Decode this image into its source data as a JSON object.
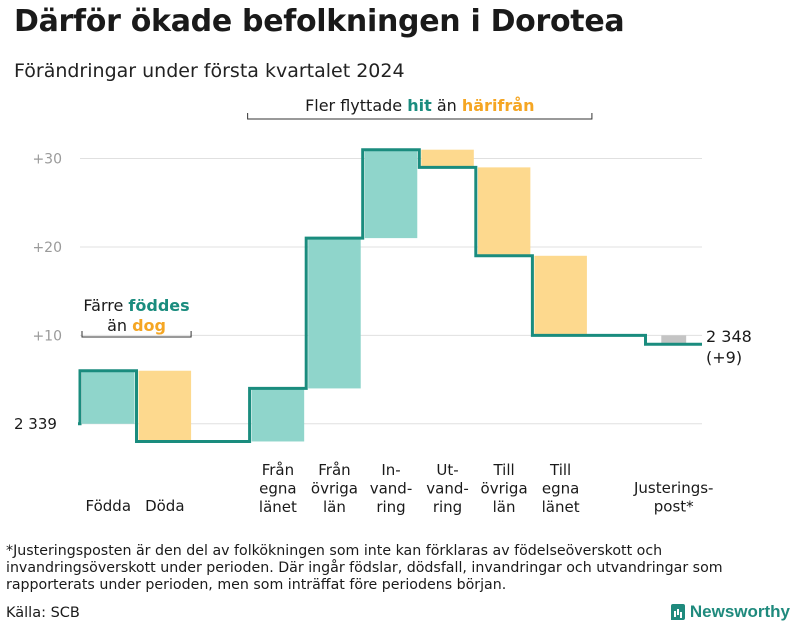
{
  "title": "Därför ökade befolkningen i Dorotea",
  "subtitle": "Förändringar under första kvartalet 2024",
  "colors": {
    "inflow": "#8fd5cb",
    "outflow": "#fdd98e",
    "adjust": "#c4c4c4",
    "line": "#1a8c7e",
    "hit": "#1a8c7e",
    "harifran": "#f5a623",
    "grid": "#e0e0e0"
  },
  "chart_data": {
    "type": "waterfall",
    "base_population": 2339,
    "start_label": "2 339",
    "end_label_value": "2 348",
    "end_label_change": "(+9)",
    "ylim": [
      -5,
      33
    ],
    "yticks": [
      {
        "value": 10,
        "label": "+10"
      },
      {
        "value": 20,
        "label": "+20"
      },
      {
        "value": 30,
        "label": "+30"
      }
    ],
    "steps": [
      {
        "lines": [
          "Födda"
        ],
        "change": 6,
        "kind": "inflow"
      },
      {
        "lines": [
          "Döda"
        ],
        "change": -8,
        "kind": "outflow"
      },
      {
        "lines": [],
        "change": 0,
        "kind": "gap"
      },
      {
        "lines": [
          "Från",
          "egna",
          "länet"
        ],
        "change": 6,
        "kind": "inflow"
      },
      {
        "lines": [
          "Från",
          "övriga",
          "län"
        ],
        "change": 17,
        "kind": "inflow"
      },
      {
        "lines": [
          "In-",
          "vand-",
          "ring"
        ],
        "change": 10,
        "kind": "inflow"
      },
      {
        "lines": [
          "Ut-",
          "vand-",
          "ring"
        ],
        "change": -2,
        "kind": "outflow"
      },
      {
        "lines": [
          "Till",
          "övriga",
          "län"
        ],
        "change": -10,
        "kind": "outflow"
      },
      {
        "lines": [
          "Till",
          "egna",
          "länet"
        ],
        "change": -9,
        "kind": "outflow"
      },
      {
        "lines": [],
        "change": 0,
        "kind": "gap"
      },
      {
        "lines": [
          "Justerings-",
          "post*"
        ],
        "change": -1,
        "kind": "adjust"
      }
    ],
    "annotation_birth": {
      "pre1": "Färre ",
      "emph1": "föddes",
      "pre2": "än ",
      "emph2": "dog"
    },
    "annotation_migration": {
      "pre1": "Fler flyttade ",
      "emph1": "hit",
      "pre2": " än ",
      "emph2": "härifrån"
    }
  },
  "footnote": "*Justeringsposten är den del av folkökningen som inte kan förklaras av födelseöverskott och invandringsöverskott under perioden. Där ingår födslar, dödsfall, invandringar och utvandringar som rapporterats under perioden, men som inträffat före periodens början.",
  "source": "Källa: SCB",
  "brand": "Newsworthy"
}
